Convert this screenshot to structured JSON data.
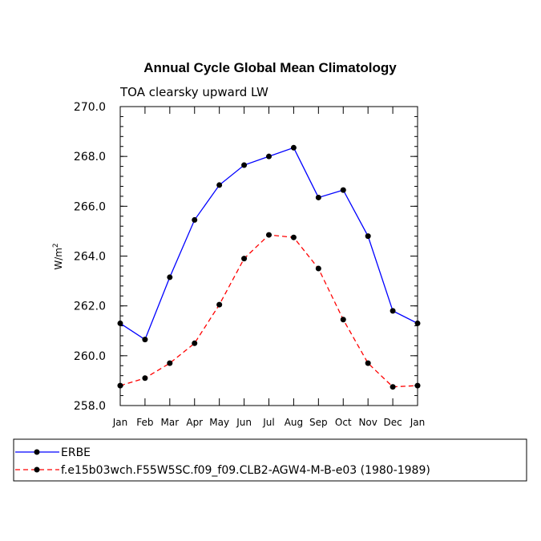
{
  "chart_data": {
    "type": "line",
    "title": "Annual Cycle Global Mean Climatology",
    "subtitle": "TOA clearsky upward LW",
    "ylabel": "W/m",
    "ylabel_sup": "2",
    "ylim": [
      258.0,
      270.0
    ],
    "yticks": [
      "258.0",
      "260.0",
      "262.0",
      "264.0",
      "266.0",
      "268.0",
      "270.0"
    ],
    "categories": [
      "Jan",
      "Feb",
      "Mar",
      "Apr",
      "May",
      "Jun",
      "Jul",
      "Aug",
      "Sep",
      "Oct",
      "Nov",
      "Dec",
      "Jan"
    ],
    "series": [
      {
        "name": "ERBE",
        "color": "#0000ff",
        "dash": "solid",
        "values": [
          261.3,
          260.65,
          263.15,
          265.45,
          266.85,
          267.65,
          268.0,
          268.35,
          266.35,
          266.65,
          264.8,
          261.8,
          261.3
        ]
      },
      {
        "name": "f.e15b03wch.F55W5SC.f09_f09.CLB2-AGW4-M-B-e03 (1980-1989)",
        "color": "#ff0000",
        "dash": "dashed",
        "values": [
          258.8,
          259.1,
          259.7,
          260.5,
          262.05,
          263.9,
          264.85,
          264.75,
          263.5,
          261.45,
          259.7,
          258.75,
          258.8
        ]
      }
    ]
  }
}
